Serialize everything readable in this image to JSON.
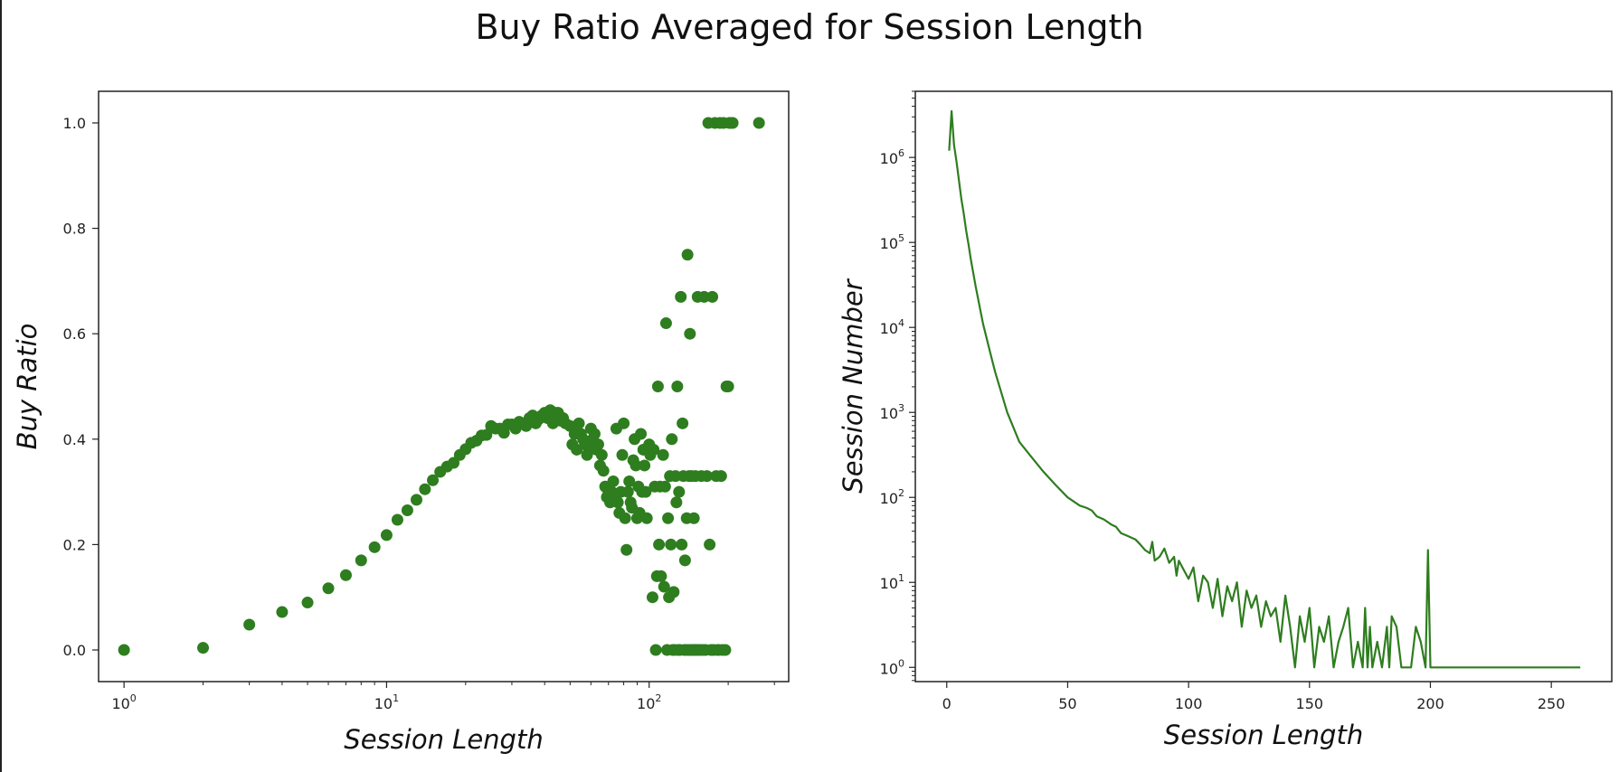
{
  "title": "Buy Ratio Averaged for Session Length",
  "colors": {
    "series": "#2e7d1f",
    "axis": "#222222",
    "text": "#111111"
  },
  "chart_data": [
    {
      "type": "scatter",
      "xlabel": "Session Length",
      "ylabel": "Buy Ratio",
      "xscale": "log",
      "xlim": [
        0.8,
        340
      ],
      "ylim": [
        -0.06,
        1.06
      ],
      "xticks": [
        1,
        10,
        100
      ],
      "xtick_labels": [
        {
          "base": "10",
          "exp": "0"
        },
        {
          "base": "10",
          "exp": "1"
        },
        {
          "base": "10",
          "exp": "2"
        }
      ],
      "yticks": [
        0.0,
        0.2,
        0.4,
        0.6,
        0.8,
        1.0
      ],
      "ytick_labels": [
        "0.0",
        "0.2",
        "0.4",
        "0.6",
        "0.8",
        "1.0"
      ],
      "grid": false,
      "series": [
        {
          "points": [
            [
              1,
              0.0
            ],
            [
              2,
              0.004
            ],
            [
              3,
              0.048
            ],
            [
              4,
              0.072
            ],
            [
              5,
              0.09
            ],
            [
              6,
              0.117
            ],
            [
              7,
              0.142
            ],
            [
              8,
              0.17
            ],
            [
              9,
              0.195
            ],
            [
              10,
              0.218
            ],
            [
              11,
              0.247
            ],
            [
              12,
              0.265
            ],
            [
              13,
              0.285
            ],
            [
              14,
              0.305
            ],
            [
              15,
              0.322
            ],
            [
              16,
              0.338
            ],
            [
              17,
              0.348
            ],
            [
              18,
              0.355
            ],
            [
              19,
              0.37
            ],
            [
              20,
              0.381
            ],
            [
              21,
              0.393
            ],
            [
              22,
              0.397
            ],
            [
              23,
              0.407
            ],
            [
              24,
              0.408
            ],
            [
              25,
              0.425
            ],
            [
              26,
              0.42
            ],
            [
              27,
              0.42
            ],
            [
              28,
              0.412
            ],
            [
              29,
              0.428
            ],
            [
              30,
              0.428
            ],
            [
              31,
              0.42
            ],
            [
              32,
              0.433
            ],
            [
              33,
              0.43
            ],
            [
              34,
              0.425
            ],
            [
              35,
              0.44
            ],
            [
              36,
              0.445
            ],
            [
              37,
              0.43
            ],
            [
              38,
              0.438
            ],
            [
              39,
              0.445
            ],
            [
              40,
              0.45
            ],
            [
              41,
              0.44
            ],
            [
              42,
              0.455
            ],
            [
              43,
              0.43
            ],
            [
              44,
              0.45
            ],
            [
              45,
              0.45
            ],
            [
              46,
              0.435
            ],
            [
              47,
              0.44
            ],
            [
              48,
              0.43
            ],
            [
              50,
              0.425
            ],
            [
              51,
              0.39
            ],
            [
              52,
              0.41
            ],
            [
              53,
              0.38
            ],
            [
              54,
              0.43
            ],
            [
              55,
              0.41
            ],
            [
              56,
              0.4
            ],
            [
              57,
              0.39
            ],
            [
              58,
              0.37
            ],
            [
              59,
              0.38
            ],
            [
              60,
              0.42
            ],
            [
              61,
              0.4
            ],
            [
              62,
              0.41
            ],
            [
              63,
              0.38
            ],
            [
              64,
              0.39
            ],
            [
              65,
              0.35
            ],
            [
              66,
              0.37
            ],
            [
              67,
              0.34
            ],
            [
              68,
              0.31
            ],
            [
              69,
              0.29
            ],
            [
              70,
              0.3
            ],
            [
              71,
              0.28
            ],
            [
              72,
              0.3
            ],
            [
              73,
              0.32
            ],
            [
              74,
              0.29
            ],
            [
              75,
              0.42
            ],
            [
              76,
              0.28
            ],
            [
              77,
              0.26
            ],
            [
              78,
              0.3
            ],
            [
              79,
              0.37
            ],
            [
              80,
              0.43
            ],
            [
              81,
              0.25
            ],
            [
              82,
              0.19
            ],
            [
              83,
              0.3
            ],
            [
              84,
              0.32
            ],
            [
              85,
              0.28
            ],
            [
              86,
              0.27
            ],
            [
              87,
              0.36
            ],
            [
              88,
              0.4
            ],
            [
              89,
              0.35
            ],
            [
              90,
              0.25
            ],
            [
              91,
              0.31
            ],
            [
              92,
              0.26
            ],
            [
              93,
              0.41
            ],
            [
              94,
              0.3
            ],
            [
              95,
              0.38
            ],
            [
              96,
              0.35
            ],
            [
              97,
              0.3
            ],
            [
              98,
              0.25
            ],
            [
              100,
              0.39
            ],
            [
              101,
              0.37
            ],
            [
              103,
              0.1
            ],
            [
              104,
              0.38
            ],
            [
              105,
              0.31
            ],
            [
              106,
              0.0
            ],
            [
              107,
              0.14
            ],
            [
              108,
              0.5
            ],
            [
              109,
              0.2
            ],
            [
              110,
              0.31
            ],
            [
              111,
              0.14
            ],
            [
              113,
              0.37
            ],
            [
              114,
              0.12
            ],
            [
              115,
              0.31
            ],
            [
              116,
              0.62
            ],
            [
              117,
              0.0
            ],
            [
              118,
              0.25
            ],
            [
              119,
              0.1
            ],
            [
              120,
              0.33
            ],
            [
              121,
              0.2
            ],
            [
              122,
              0.4
            ],
            [
              123,
              0.0
            ],
            [
              124,
              0.11
            ],
            [
              125,
              0.0
            ],
            [
              126,
              0.33
            ],
            [
              127,
              0.28
            ],
            [
              128,
              0.5
            ],
            [
              129,
              0.0
            ],
            [
              130,
              0.3
            ],
            [
              131,
              0.0
            ],
            [
              132,
              0.67
            ],
            [
              133,
              0.2
            ],
            [
              134,
              0.43
            ],
            [
              135,
              0.33
            ],
            [
              136,
              0.0
            ],
            [
              137,
              0.17
            ],
            [
              138,
              0.0
            ],
            [
              139,
              0.25
            ],
            [
              140,
              0.75
            ],
            [
              141,
              0.0
            ],
            [
              142,
              0.33
            ],
            [
              143,
              0.6
            ],
            [
              144,
              0.0
            ],
            [
              145,
              0.33
            ],
            [
              146,
              0.0
            ],
            [
              147,
              0.0
            ],
            [
              148,
              0.25
            ],
            [
              149,
              0.0
            ],
            [
              150,
              0.33
            ],
            [
              151,
              0.0
            ],
            [
              153,
              0.67
            ],
            [
              154,
              0.0
            ],
            [
              156,
              0.0
            ],
            [
              158,
              0.33
            ],
            [
              160,
              0.0
            ],
            [
              162,
              0.67
            ],
            [
              164,
              0.0
            ],
            [
              166,
              0.33
            ],
            [
              168,
              1.0
            ],
            [
              170,
              0.2
            ],
            [
              172,
              0.0
            ],
            [
              174,
              0.67
            ],
            [
              176,
              0.0
            ],
            [
              178,
              1.0
            ],
            [
              180,
              0.33
            ],
            [
              182,
              0.0
            ],
            [
              184,
              0.0
            ],
            [
              186,
              1.0
            ],
            [
              188,
              0.33
            ],
            [
              190,
              0.0
            ],
            [
              192,
              1.0
            ],
            [
              195,
              0.0
            ],
            [
              197,
              0.5
            ],
            [
              200,
              0.5
            ],
            [
              202,
              1.0
            ],
            [
              205,
              1.0
            ],
            [
              208,
              1.0
            ],
            [
              262,
              1.0
            ]
          ]
        }
      ]
    },
    {
      "type": "line",
      "xlabel": "Session Length",
      "ylabel": "Session Number",
      "yscale": "log",
      "xlim": [
        -13,
        275
      ],
      "ylim": [
        0.68,
        6000000
      ],
      "xticks": [
        0,
        50,
        100,
        150,
        200,
        250
      ],
      "xtick_labels": [
        "0",
        "50",
        "100",
        "150",
        "200",
        "250"
      ],
      "yticks": [
        1,
        10,
        100,
        1000,
        10000,
        100000,
        1000000
      ],
      "ytick_labels": [
        {
          "base": "10",
          "exp": "0"
        },
        {
          "base": "10",
          "exp": "1"
        },
        {
          "base": "10",
          "exp": "2"
        },
        {
          "base": "10",
          "exp": "3"
        },
        {
          "base": "10",
          "exp": "4"
        },
        {
          "base": "10",
          "exp": "5"
        },
        {
          "base": "10",
          "exp": "6"
        }
      ],
      "grid": false,
      "series": [
        {
          "x": [
            1,
            2,
            3,
            4,
            5,
            6,
            7,
            8,
            9,
            10,
            12,
            15,
            18,
            20,
            25,
            30,
            35,
            40,
            45,
            50,
            55,
            58,
            60,
            62,
            65,
            68,
            70,
            72,
            75,
            78,
            80,
            82,
            84,
            85,
            86,
            88,
            90,
            92,
            94,
            95,
            96,
            98,
            100,
            102,
            104,
            106,
            108,
            110,
            112,
            114,
            116,
            118,
            120,
            122,
            124,
            126,
            128,
            130,
            132,
            134,
            136,
            138,
            140,
            142,
            144,
            146,
            148,
            150,
            152,
            154,
            156,
            158,
            160,
            162,
            164,
            166,
            168,
            170,
            172,
            173,
            174,
            175,
            176,
            178,
            180,
            182,
            183,
            184,
            186,
            188,
            190,
            192,
            194,
            196,
            198,
            199,
            200,
            201,
            210,
            220,
            230,
            240,
            250,
            262
          ],
          "y": [
            1200000,
            3500000,
            1400000,
            900000,
            550000,
            330000,
            220000,
            140000,
            95000,
            62000,
            30000,
            11000,
            5000,
            3000,
            1000,
            450,
            300,
            200,
            140,
            100,
            80,
            75,
            70,
            60,
            55,
            48,
            45,
            38,
            35,
            32,
            28,
            24,
            22,
            30,
            18,
            20,
            25,
            17,
            20,
            12,
            18,
            14,
            11,
            15,
            6,
            12,
            10,
            5,
            11,
            4,
            9,
            6,
            10,
            3,
            8,
            5,
            7,
            3,
            6,
            4,
            5,
            2,
            7,
            3,
            1,
            4,
            2,
            5,
            1,
            3,
            2,
            4,
            1,
            2,
            3,
            5,
            1,
            2,
            1,
            5,
            1,
            3,
            1,
            2,
            1,
            3,
            1,
            4,
            3,
            1,
            1,
            1,
            3,
            2,
            1,
            24,
            1,
            1,
            1,
            1,
            1,
            1,
            1,
            1
          ]
        }
      ]
    }
  ]
}
